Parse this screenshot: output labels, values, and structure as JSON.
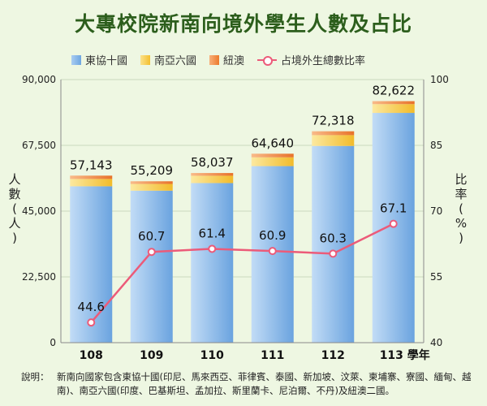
{
  "title": "大專校院新南向境外學生人數及占比",
  "legend": [
    {
      "label": "東協十國",
      "color": "#7fb3e6"
    },
    {
      "label": "南亞六國",
      "color": "#f6c944"
    },
    {
      "label": "紐澳",
      "color": "#f08a3c"
    },
    {
      "label": "占境外生總數比率",
      "color": "#ec5b79"
    }
  ],
  "axes": {
    "left_label": "人數(人)",
    "right_label": "比率(%)",
    "x_suffix": "學年"
  },
  "note_label": "說明：",
  "note_text": "新南向國家包含東協十國(印尼、馬來西亞、菲律賓、泰國、新加坡、汶萊、柬埔寨、寮國、緬甸、越南)、南亞六國(印度、巴基斯坦、孟加拉、斯里蘭卡、尼泊爾、不丹)及紐澳二國。",
  "chart_data": {
    "type": "bar",
    "stacked": true,
    "categories": [
      "108",
      "109",
      "110",
      "111",
      "112",
      "113"
    ],
    "ylim": [
      0,
      90000
    ],
    "yticks": [
      "0",
      "22,500",
      "45,000",
      "67,500",
      "90,000"
    ],
    "y2lim": [
      40,
      100
    ],
    "y2ticks": [
      "40",
      "55",
      "70",
      "85",
      "100"
    ],
    "totals": [
      57143,
      55209,
      58037,
      64640,
      72318,
      82622
    ],
    "total_labels": [
      "57,143",
      "55,209",
      "58,037",
      "64,640",
      "72,318",
      "82,622"
    ],
    "series": [
      {
        "name": "東協十國",
        "values": [
          53500,
          52000,
          54600,
          60400,
          67300,
          78600
        ],
        "color": "#7fb3e6"
      },
      {
        "name": "南亞六國",
        "values": [
          2500,
          2300,
          2500,
          3000,
          3700,
          3000
        ],
        "color": "#f6c944"
      },
      {
        "name": "紐澳",
        "values": [
          1143,
          909,
          937,
          1240,
          1318,
          1022
        ],
        "color": "#f08a3c"
      }
    ],
    "line": {
      "name": "占境外生總數比率",
      "values": [
        44.6,
        60.7,
        61.4,
        60.9,
        60.3,
        67.1
      ],
      "labels": [
        "44.6",
        "60.7",
        "61.4",
        "60.9",
        "60.3",
        "67.1"
      ],
      "color": "#ec5b79"
    }
  }
}
